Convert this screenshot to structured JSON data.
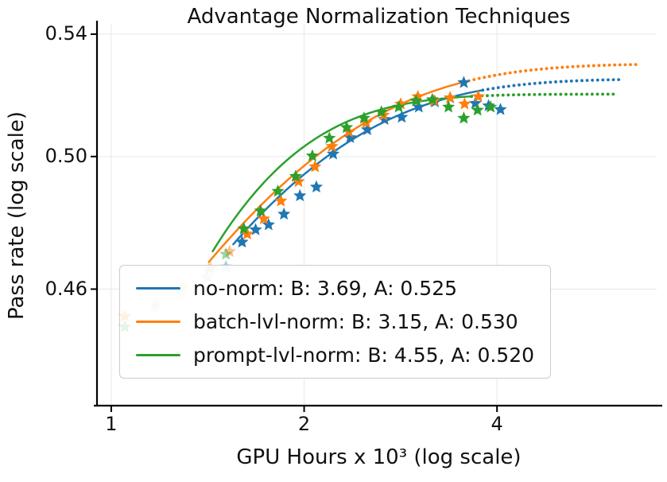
{
  "chart_data": {
    "type": "scatter",
    "title": "Advantage Normalization Techniques",
    "xlabel": "GPU Hours x 10³ (log scale)",
    "ylabel": "Pass rate (log scale)",
    "x_scale": "log",
    "y_scale": "log",
    "xlim": [
      0.95,
      7.1
    ],
    "ylim": [
      0.4275,
      0.5435
    ],
    "grid": true,
    "legend_position": "lower left",
    "fit_model": "y = A - c*exp(-k*x)",
    "x_ticks": [
      {
        "value": 1,
        "label": "1"
      },
      {
        "value": 2,
        "label": "2"
      },
      {
        "value": 4,
        "label": "4"
      }
    ],
    "y_ticks": [
      {
        "value": 0.54,
        "label": "0.54"
      },
      {
        "value": 0.5,
        "label": "0.50"
      },
      {
        "value": 0.46,
        "label": "0.46"
      }
    ],
    "series": [
      {
        "name": "no-norm",
        "legend_label": "no-norm: B: 3.69, A: 0.525",
        "color": "#1f77b4",
        "B": 3.69,
        "A": 0.525,
        "fit": {
          "A": 0.525,
          "c": 0.32,
          "k": 1.174
        },
        "solid_range": [
          1.55,
          3.8
        ],
        "dotted_range": [
          3.8,
          6.3
        ],
        "points": [
          [
            1.17,
            0.4545,
            0.18
          ],
          [
            1.29,
            0.4585,
            0.2
          ],
          [
            1.41,
            0.4635,
            0.3
          ],
          [
            1.51,
            0.4665,
            0.4
          ],
          [
            1.6,
            0.4738,
            1
          ],
          [
            1.68,
            0.4775,
            1
          ],
          [
            1.76,
            0.479,
            1
          ],
          [
            1.86,
            0.4822,
            1
          ],
          [
            1.97,
            0.4878,
            1
          ],
          [
            2.09,
            0.4905,
            1
          ],
          [
            2.22,
            0.5008,
            1
          ],
          [
            2.36,
            0.506,
            1
          ],
          [
            2.51,
            0.5085,
            1
          ],
          [
            2.67,
            0.5118,
            1
          ],
          [
            2.84,
            0.5125,
            1
          ],
          [
            3.02,
            0.5158,
            1
          ],
          [
            3.2,
            0.5175,
            1
          ],
          [
            3.38,
            0.5188,
            1
          ],
          [
            3.55,
            0.5238,
            1
          ],
          [
            3.7,
            0.517,
            1
          ],
          [
            3.88,
            0.5162,
            1
          ],
          [
            4.05,
            0.515,
            1
          ]
        ]
      },
      {
        "name": "batch-lvl-norm",
        "legend_label": "batch-lvl-norm: B: 3.15, A: 0.530",
        "color": "#ff7f0e",
        "B": 3.15,
        "A": 0.53,
        "fit": {
          "A": 0.53,
          "c": 0.294,
          "k": 1.095
        },
        "solid_range": [
          1.42,
          3.55
        ],
        "dotted_range": [
          3.55,
          6.6
        ],
        "points": [
          [
            1.05,
            0.4522,
            0.95
          ],
          [
            1.18,
            0.4562,
            0.18
          ],
          [
            1.3,
            0.4612,
            0.2
          ],
          [
            1.43,
            0.4662,
            0.32
          ],
          [
            1.53,
            0.471,
            0.5
          ],
          [
            1.63,
            0.4762,
            1
          ],
          [
            1.73,
            0.4808,
            1
          ],
          [
            1.84,
            0.4862,
            1
          ],
          [
            1.96,
            0.4922,
            1
          ],
          [
            2.08,
            0.4968,
            1
          ],
          [
            2.21,
            0.5032,
            1
          ],
          [
            2.35,
            0.5078,
            1
          ],
          [
            2.5,
            0.5108,
            1
          ],
          [
            2.66,
            0.5132,
            1
          ],
          [
            2.83,
            0.5168,
            1
          ],
          [
            3.01,
            0.5192,
            1
          ],
          [
            3.19,
            0.5178,
            1
          ],
          [
            3.38,
            0.5188,
            1
          ],
          [
            3.56,
            0.5168,
            1
          ],
          [
            3.74,
            0.5192,
            1
          ]
        ]
      },
      {
        "name": "prompt-lvl-norm",
        "legend_label": "prompt-lvl-norm: B: 4.55, A: 0.520",
        "color": "#2ca02c",
        "B": 4.55,
        "A": 0.52,
        "fit": {
          "A": 0.52,
          "c": 0.76,
          "k": 1.905
        },
        "solid_range": [
          1.44,
          3.65
        ],
        "dotted_range": [
          3.65,
          6.15
        ],
        "points": [
          [
            1.05,
            0.4492,
            0.95
          ],
          [
            1.17,
            0.4555,
            0.18
          ],
          [
            1.29,
            0.4605,
            0.2
          ],
          [
            1.42,
            0.4658,
            0.3
          ],
          [
            1.51,
            0.4702,
            0.45
          ],
          [
            1.61,
            0.4778,
            1
          ],
          [
            1.71,
            0.4832,
            1
          ],
          [
            1.82,
            0.4892,
            1
          ],
          [
            1.94,
            0.4938,
            1
          ],
          [
            2.06,
            0.5002,
            1
          ],
          [
            2.19,
            0.5058,
            1
          ],
          [
            2.33,
            0.5092,
            1
          ],
          [
            2.48,
            0.5122,
            1
          ],
          [
            2.64,
            0.5142,
            1
          ],
          [
            2.81,
            0.5158,
            1
          ],
          [
            2.99,
            0.5178,
            1
          ],
          [
            3.17,
            0.5182,
            1
          ],
          [
            3.36,
            0.5158,
            1
          ],
          [
            3.55,
            0.5122,
            1
          ],
          [
            3.73,
            0.5148,
            1
          ],
          [
            3.91,
            0.5158,
            1
          ]
        ]
      }
    ]
  }
}
